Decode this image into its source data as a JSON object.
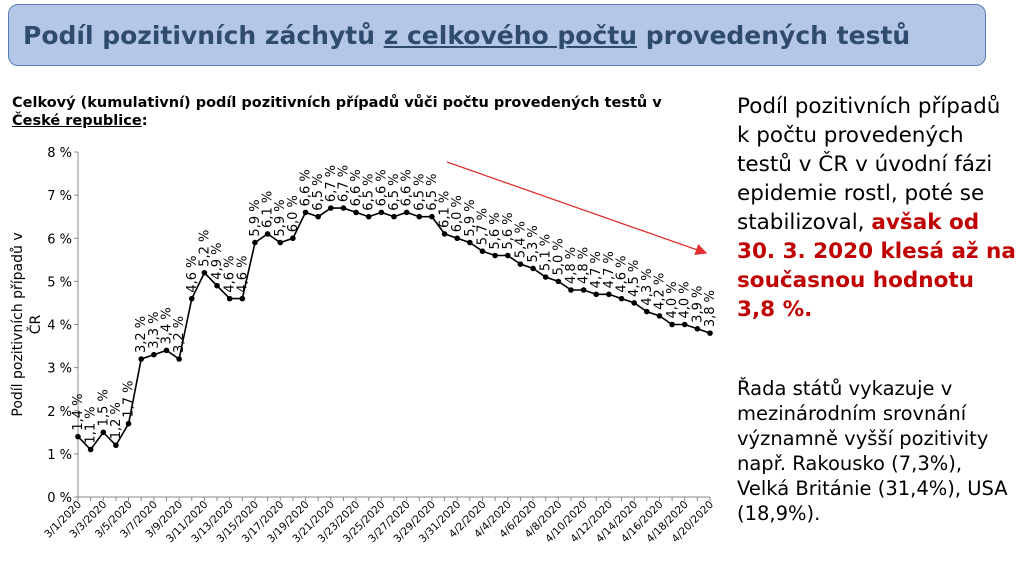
{
  "header": {
    "title_a": "Podíl pozitivních záchytů",
    "title_b": "z celkového počtu",
    "title_c": "provedených testů"
  },
  "chart_heading": {
    "part1": "Celkový (kumulativní) podíl pozitivních případů vůči počtu provedených testů v",
    "part2": "České republice",
    "part3": ":"
  },
  "side_text": {
    "p1_normal": "Podíl pozitivních případů k počtu provedených testů v ČR v úvodní fázi epidemie rostl, poté se stabilizoval,",
    "p1_bold": "avšak od 30. 3. 2020 klesá až na současnou hodnotu 3,8 %.",
    "p2": "Řada států vykazuje v mezinárodním srovnání významně vyšší pozitivity např. Rakousko (7,3%), Velká Británie (31,4%), USA (18,9%)."
  },
  "colors": {
    "line": "#000000",
    "trend_arrow": "#e03030",
    "title_bg": "#b4c7e7",
    "title_text": "#2f4b6e",
    "highlight": "#c00000"
  },
  "chart_data": {
    "type": "line",
    "ylabel": "Podíl pozitivních případů v ČR",
    "ylim": [
      0,
      8
    ],
    "yticks": [
      "0 %",
      "1 %",
      "2 %",
      "3 %",
      "4 %",
      "5 %",
      "6 %",
      "7 %",
      "8 %"
    ],
    "xticks": [
      "3/1/2020",
      "3/3/2020",
      "3/5/2020",
      "3/7/2020",
      "3/9/2020",
      "3/11/2020",
      "3/13/2020",
      "3/15/2020",
      "3/17/2020",
      "3/19/2020",
      "3/21/2020",
      "3/23/2020",
      "3/25/2020",
      "3/27/2020",
      "3/29/2020",
      "3/31/2020",
      "4/2/2020",
      "4/4/2020",
      "4/6/2020",
      "4/8/2020",
      "4/10/2020",
      "4/12/2020",
      "4/14/2020",
      "4/16/2020",
      "4/18/2020",
      "4/20/2020"
    ],
    "values": [
      1.4,
      1.1,
      1.5,
      1.2,
      1.7,
      3.2,
      3.3,
      3.4,
      3.2,
      4.6,
      5.2,
      4.9,
      4.6,
      4.6,
      5.9,
      6.1,
      5.9,
      6.0,
      6.6,
      6.5,
      6.7,
      6.7,
      6.6,
      6.5,
      6.6,
      6.5,
      6.6,
      6.5,
      6.5,
      6.1,
      6.0,
      5.9,
      5.7,
      5.6,
      5.6,
      5.4,
      5.3,
      5.1,
      5.0,
      4.8,
      4.8,
      4.7,
      4.7,
      4.6,
      4.5,
      4.3,
      4.2,
      4.0,
      4.0,
      3.9,
      3.8
    ],
    "data_labels": [
      "1,4 %",
      "1,1 %",
      "1,5 %",
      "1,2 %",
      "1,7 %",
      "3,2 %",
      "3,3 %",
      "3,4 %",
      "3,2 %",
      "4,6 %",
      "5,2 %",
      "4,9 %",
      "4,6 %",
      "4,6 %",
      "5,9 %",
      "6,1 %",
      "5,9 %",
      "6,0 %",
      "6,6 %",
      "6,5 %",
      "6,7 %",
      "6,7 %",
      "6,6 %",
      "6,5 %",
      "6,6 %",
      "6,5 %",
      "6,6 %",
      "6,5 %",
      "6,5 %",
      "6,1 %",
      "6,0 %",
      "5,9 %",
      "5,7 %",
      "5,6 %",
      "5,6 %",
      "5,4 %",
      "5,3 %",
      "5,1 %",
      "5,0 %",
      "4,8 %",
      "4,8 %",
      "4,7 %",
      "4,7 %",
      "4,6 %",
      "4,5 %",
      "4,3 %",
      "4,2 %",
      "4,0 %",
      "4,0 %",
      "3,9 %",
      "3,8 %"
    ],
    "grid": false,
    "legend": "none",
    "trend_arrow": true
  }
}
